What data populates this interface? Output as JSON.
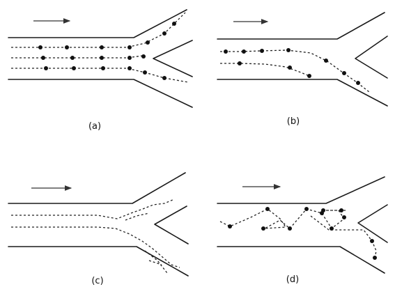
{
  "panels": [
    {
      "id": "a",
      "label": "(a)"
    },
    {
      "id": "b",
      "label": "(b)"
    },
    {
      "id": "c",
      "label": "(c)"
    },
    {
      "id": "d",
      "label": "(d)"
    }
  ],
  "colors": {
    "ink": "#111111",
    "background": "#ffffff"
  }
}
